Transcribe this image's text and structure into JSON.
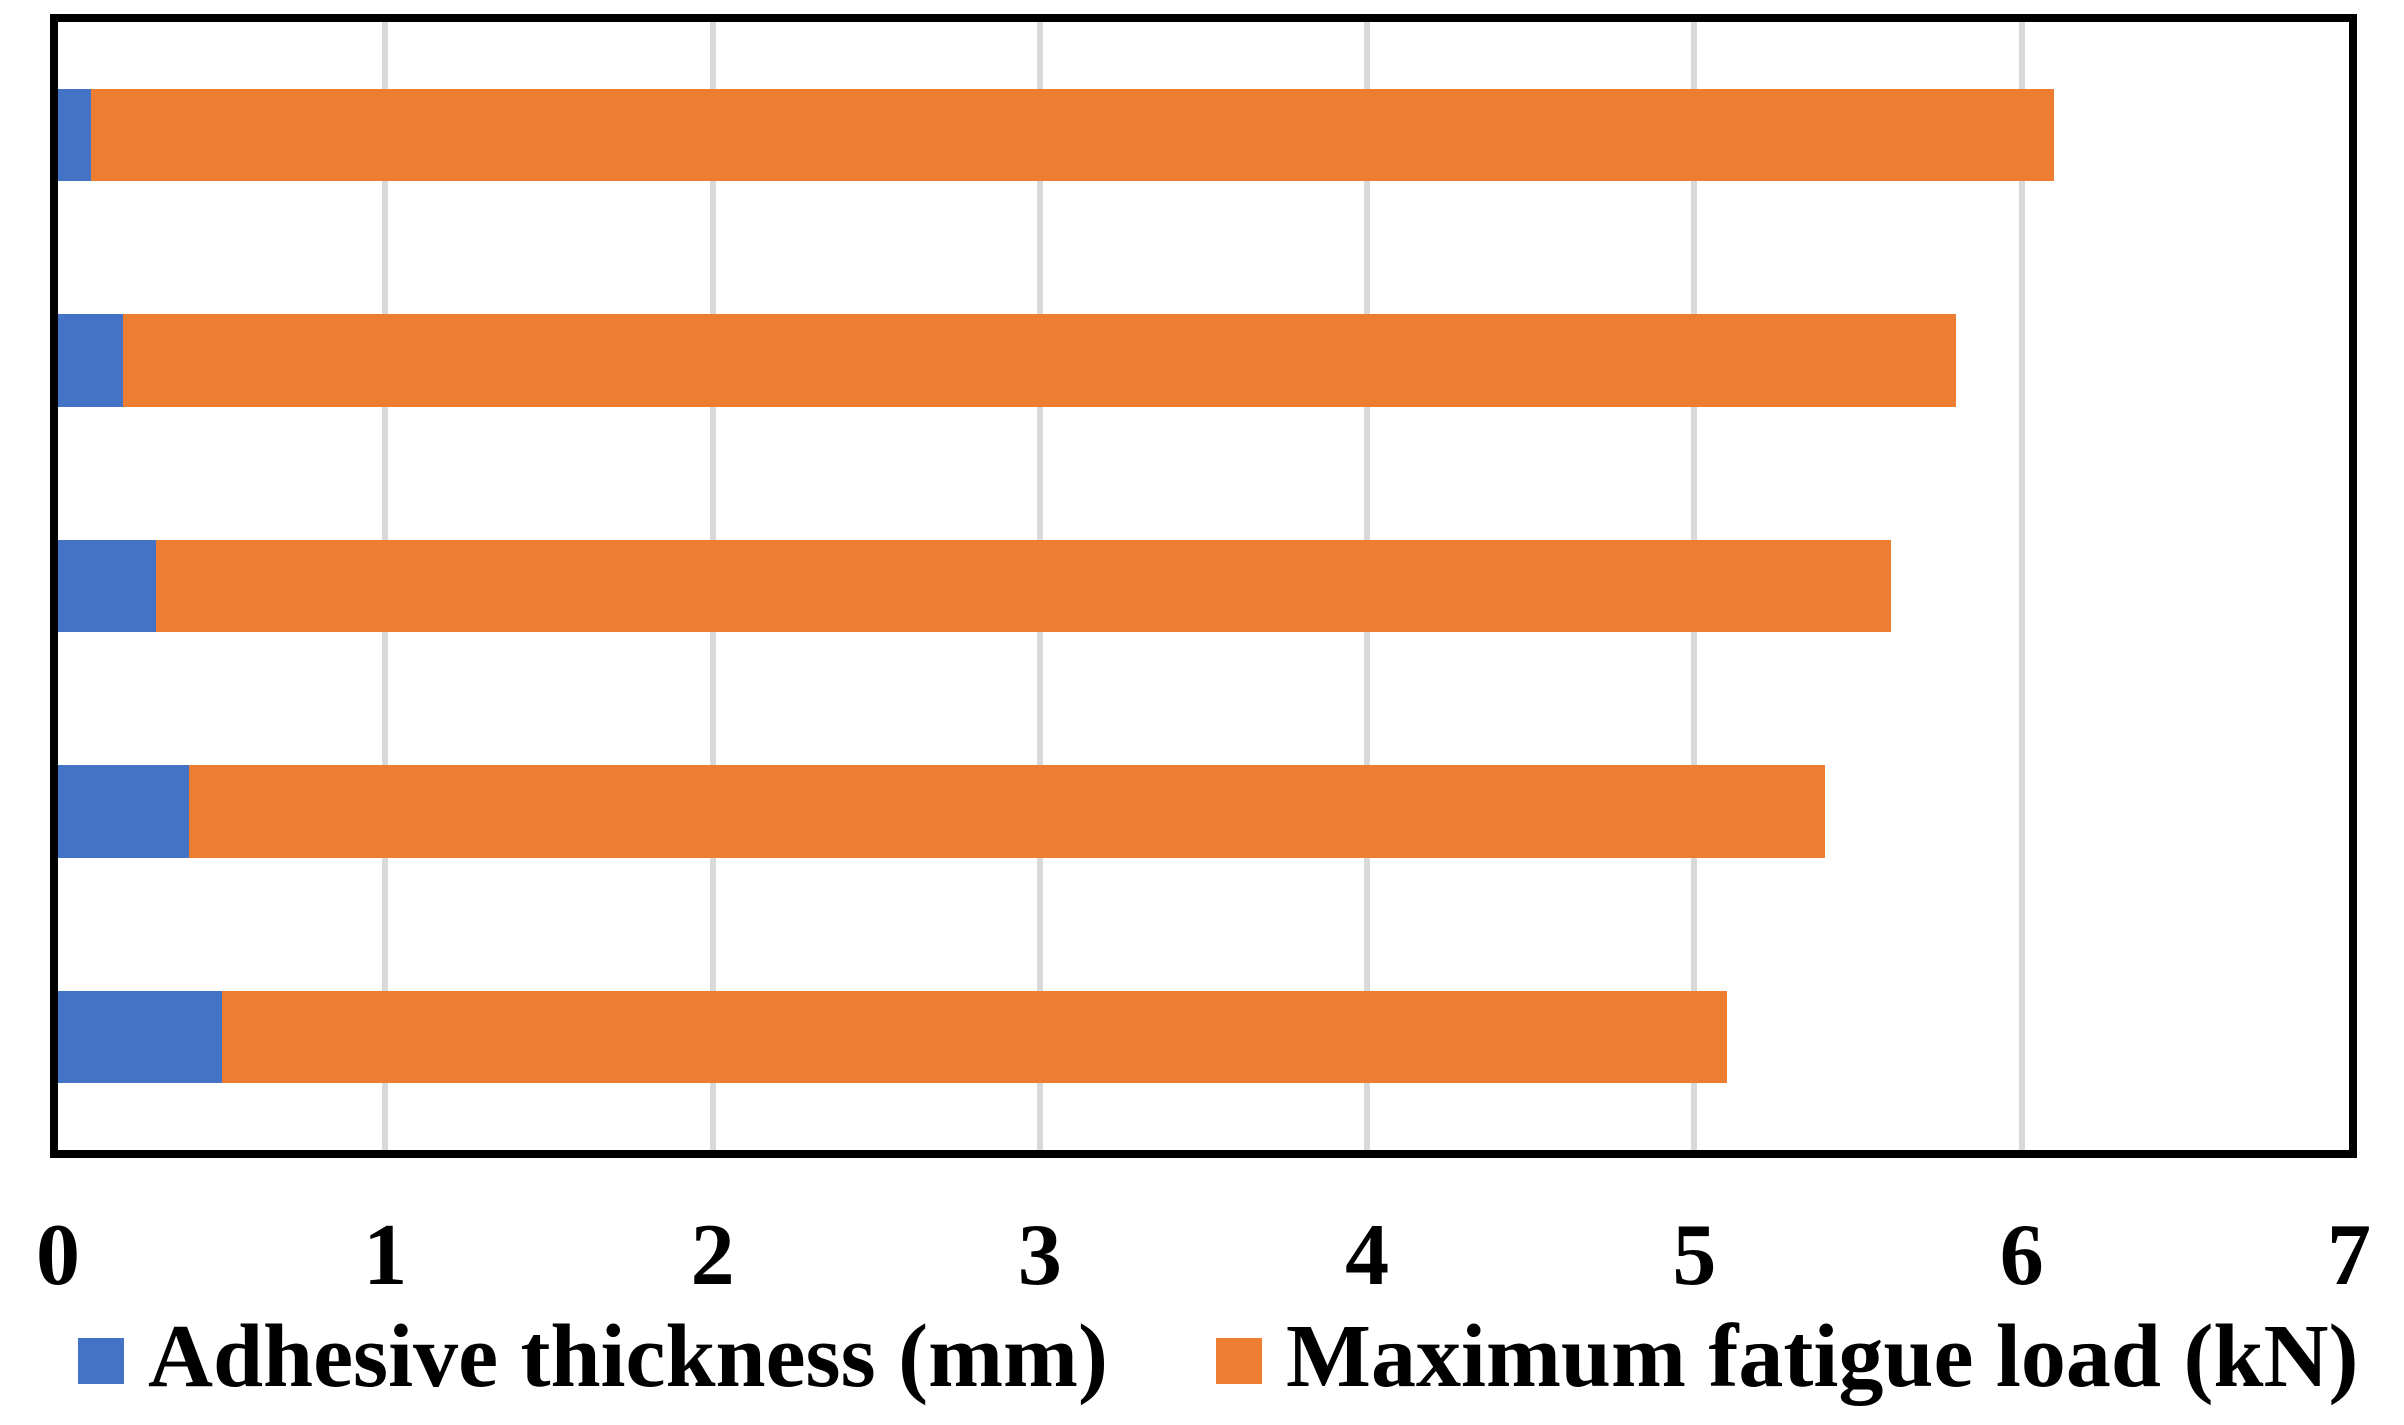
{
  "chart_data": {
    "type": "bar",
    "orientation": "horizontal",
    "stacked": true,
    "title": "",
    "xlabel": "",
    "ylabel": "",
    "categories": [
      "",
      "",
      "",
      "",
      ""
    ],
    "series": [
      {
        "name": "Adhesive thickness (mm)",
        "color": "#4472C4",
        "values": [
          0.1,
          0.2,
          0.3,
          0.4,
          0.5
        ]
      },
      {
        "name": "Maximum fatigue load (kN)",
        "color": "#ED7D31",
        "values": [
          6.0,
          5.6,
          5.3,
          5.0,
          4.6
        ]
      }
    ],
    "stack_totals": [
      6.1,
      5.8,
      5.6,
      5.4,
      5.1
    ],
    "x_axis": {
      "min": 0,
      "max": 7,
      "ticks": [
        "0",
        "1",
        "2",
        "3",
        "4",
        "5",
        "6",
        "7"
      ]
    },
    "gridlines_at": [
      1,
      2,
      3,
      4,
      5,
      6
    ],
    "legend_position": "bottom",
    "colors": {
      "grid": "#D9D9D9",
      "frame": "#000000",
      "background": "#FFFFFF"
    }
  }
}
